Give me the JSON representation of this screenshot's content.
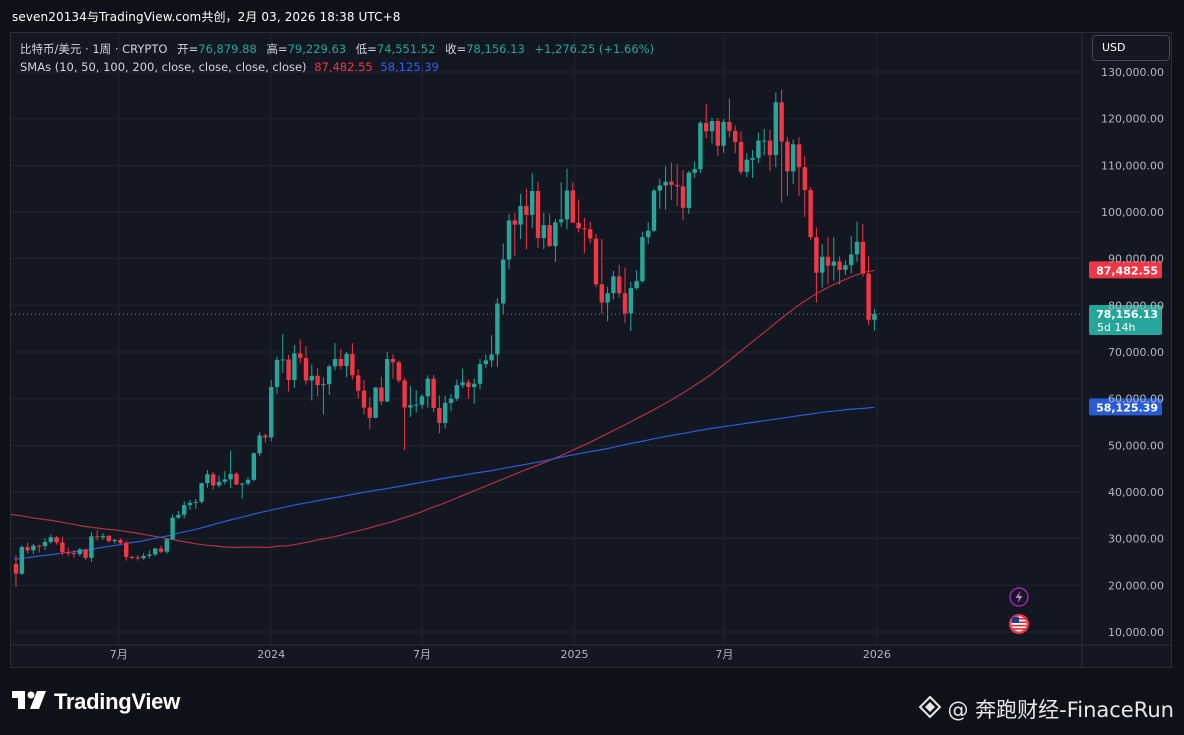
{
  "header": {
    "title": "seven20134与TradingView.com共创，2月 03, 2026 18:38 UTC+8"
  },
  "legend": {
    "symbol": "比特币/美元 · 1周 · CRYPTO",
    "open_label": "开=",
    "open": "76,879.88",
    "high_label": "高=",
    "high": "79,229.63",
    "low_label": "低=",
    "low": "74,551.52",
    "close_label": "收=",
    "close": "78,156.13",
    "change": "+1,276.25 (+1.66%)",
    "sma_label": "SMAs (10, 50, 100, 200, close, close, close, close)",
    "sma_100": "87,482.55",
    "sma_200": "58,125.39"
  },
  "currency_button": "USD",
  "price_tags": {
    "current_price": "78,156.13",
    "countdown": "5d 14h",
    "sma_100": "87,482.55",
    "sma_200": "58,125.39"
  },
  "footer": {
    "brand": "TradingView",
    "watermark": "@ 奔跑财经-FinaceRun"
  },
  "colors": {
    "up": "#26a69a",
    "down": "#f23645",
    "sma_100": "#b2323e",
    "sma_200": "#2a5bd7",
    "background": "#131722",
    "grid": "#1f2430"
  },
  "icons": [
    "lightning-icon",
    "us-flag-icon",
    "tradingview-logo-icon",
    "watermark-icon"
  ],
  "chart_data": {
    "type": "candlestick",
    "title": "比特币/美元 · 1周 · CRYPTO",
    "interval": "1周",
    "currency": "USD",
    "y_axis": {
      "ticks": [
        10000,
        20000,
        30000,
        40000,
        50000,
        60000,
        70000,
        80000,
        90000,
        100000,
        110000,
        120000,
        130000
      ],
      "tick_labels": [
        "10,000.00",
        "20,000.00",
        "30,000.00",
        "40,000.00",
        "50,000.00",
        "60,000.00",
        "70,000.00",
        "80,000.00",
        "90,000.00",
        "100,000.00",
        "110,000.00",
        "120,000.00",
        "130,000.00"
      ]
    },
    "x_axis": {
      "ticks": [
        {
          "date": "2023-07-01",
          "label": "7月"
        },
        {
          "date": "2024-01-01",
          "label": "2024"
        },
        {
          "date": "2024-07-01",
          "label": "7月"
        },
        {
          "date": "2025-01-01",
          "label": "2025"
        },
        {
          "date": "2025-07-01",
          "label": "7月"
        },
        {
          "date": "2026-01-01",
          "label": "2026"
        }
      ]
    },
    "grid": true,
    "candles": [
      {
        "o": 24600,
        "h": 26500,
        "l": 19700,
        "c": 22500
      },
      {
        "o": 22500,
        "h": 28600,
        "l": 22200,
        "c": 28200
      },
      {
        "o": 28200,
        "h": 29200,
        "l": 26800,
        "c": 27500
      },
      {
        "o": 27500,
        "h": 28900,
        "l": 26700,
        "c": 28500
      },
      {
        "o": 28500,
        "h": 28700,
        "l": 27000,
        "c": 28400
      },
      {
        "o": 28400,
        "h": 30100,
        "l": 27600,
        "c": 29300
      },
      {
        "o": 29300,
        "h": 30900,
        "l": 28900,
        "c": 30300
      },
      {
        "o": 30300,
        "h": 30600,
        "l": 28700,
        "c": 29200
      },
      {
        "o": 29200,
        "h": 30400,
        "l": 26400,
        "c": 27100
      },
      {
        "o": 27100,
        "h": 28100,
        "l": 26300,
        "c": 26900
      },
      {
        "o": 26900,
        "h": 27600,
        "l": 25900,
        "c": 26700
      },
      {
        "o": 26700,
        "h": 28000,
        "l": 26300,
        "c": 27700
      },
      {
        "o": 27700,
        "h": 27800,
        "l": 25400,
        "c": 25900
      },
      {
        "o": 25900,
        "h": 31400,
        "l": 25000,
        "c": 30500
      },
      {
        "o": 30500,
        "h": 31800,
        "l": 29600,
        "c": 30300
      },
      {
        "o": 30300,
        "h": 31200,
        "l": 29800,
        "c": 30600
      },
      {
        "o": 30600,
        "h": 30800,
        "l": 29200,
        "c": 29500
      },
      {
        "o": 29500,
        "h": 30000,
        "l": 29000,
        "c": 29700
      },
      {
        "o": 29700,
        "h": 30100,
        "l": 28800,
        "c": 29100
      },
      {
        "o": 29100,
        "h": 29600,
        "l": 25300,
        "c": 26100
      },
      {
        "o": 26100,
        "h": 26300,
        "l": 25600,
        "c": 26000
      },
      {
        "o": 26000,
        "h": 26500,
        "l": 25300,
        "c": 25800
      },
      {
        "o": 25800,
        "h": 26900,
        "l": 25500,
        "c": 26300
      },
      {
        "o": 26300,
        "h": 27500,
        "l": 25800,
        "c": 26600
      },
      {
        "o": 26600,
        "h": 28000,
        "l": 26300,
        "c": 27900
      },
      {
        "o": 27900,
        "h": 28500,
        "l": 26900,
        "c": 27200
      },
      {
        "o": 27200,
        "h": 30000,
        "l": 26800,
        "c": 29900
      },
      {
        "o": 29900,
        "h": 35200,
        "l": 29700,
        "c": 34500
      },
      {
        "o": 34500,
        "h": 35900,
        "l": 34200,
        "c": 35100
      },
      {
        "o": 35100,
        "h": 38000,
        "l": 34300,
        "c": 37200
      },
      {
        "o": 37200,
        "h": 38300,
        "l": 36200,
        "c": 37700
      },
      {
        "o": 37700,
        "h": 38500,
        "l": 36400,
        "c": 37900
      },
      {
        "o": 37900,
        "h": 42000,
        "l": 37500,
        "c": 41900
      },
      {
        "o": 41900,
        "h": 44700,
        "l": 40900,
        "c": 43800
      },
      {
        "o": 43800,
        "h": 44300,
        "l": 40500,
        "c": 41400
      },
      {
        "o": 41400,
        "h": 43500,
        "l": 41000,
        "c": 42200
      },
      {
        "o": 42200,
        "h": 44500,
        "l": 41600,
        "c": 42700
      },
      {
        "o": 42700,
        "h": 48900,
        "l": 40800,
        "c": 43900
      },
      {
        "o": 43900,
        "h": 44300,
        "l": 41500,
        "c": 41600
      },
      {
        "o": 41600,
        "h": 42000,
        "l": 38600,
        "c": 41800
      },
      {
        "o": 41800,
        "h": 43200,
        "l": 41400,
        "c": 42600
      },
      {
        "o": 42600,
        "h": 48500,
        "l": 42300,
        "c": 48300
      },
      {
        "o": 48300,
        "h": 52800,
        "l": 47700,
        "c": 52100
      },
      {
        "o": 52100,
        "h": 52500,
        "l": 50600,
        "c": 51700
      },
      {
        "o": 51700,
        "h": 64000,
        "l": 50900,
        "c": 62500
      },
      {
        "o": 62500,
        "h": 69000,
        "l": 61000,
        "c": 68300
      },
      {
        "o": 68300,
        "h": 73800,
        "l": 65500,
        "c": 68400
      },
      {
        "o": 68400,
        "h": 69400,
        "l": 61500,
        "c": 64000
      },
      {
        "o": 64000,
        "h": 71500,
        "l": 62300,
        "c": 69700
      },
      {
        "o": 69700,
        "h": 72700,
        "l": 67600,
        "c": 68700
      },
      {
        "o": 68700,
        "h": 71200,
        "l": 63000,
        "c": 63900
      },
      {
        "o": 63900,
        "h": 67300,
        "l": 59600,
        "c": 64900
      },
      {
        "o": 64900,
        "h": 66500,
        "l": 60500,
        "c": 62900
      },
      {
        "o": 62900,
        "h": 64600,
        "l": 56600,
        "c": 63100
      },
      {
        "o": 63100,
        "h": 67300,
        "l": 60800,
        "c": 66900
      },
      {
        "o": 66900,
        "h": 71900,
        "l": 66100,
        "c": 68500
      },
      {
        "o": 68500,
        "h": 70600,
        "l": 66300,
        "c": 67000
      },
      {
        "o": 67000,
        "h": 70000,
        "l": 64600,
        "c": 69600
      },
      {
        "o": 69600,
        "h": 71900,
        "l": 64100,
        "c": 65000
      },
      {
        "o": 65000,
        "h": 66300,
        "l": 60000,
        "c": 61700
      },
      {
        "o": 61700,
        "h": 64000,
        "l": 56600,
        "c": 58100
      },
      {
        "o": 58100,
        "h": 60300,
        "l": 53500,
        "c": 55900
      },
      {
        "o": 55900,
        "h": 62500,
        "l": 55800,
        "c": 62400
      },
      {
        "o": 62400,
        "h": 64700,
        "l": 58600,
        "c": 59400
      },
      {
        "o": 59400,
        "h": 70000,
        "l": 59300,
        "c": 68500
      },
      {
        "o": 68500,
        "h": 69500,
        "l": 64300,
        "c": 67800
      },
      {
        "o": 67800,
        "h": 68200,
        "l": 63400,
        "c": 63900
      },
      {
        "o": 63900,
        "h": 64500,
        "l": 49000,
        "c": 58100
      },
      {
        "o": 58100,
        "h": 62700,
        "l": 56100,
        "c": 58600
      },
      {
        "o": 58600,
        "h": 61800,
        "l": 57000,
        "c": 58700
      },
      {
        "o": 58700,
        "h": 61000,
        "l": 57800,
        "c": 60500
      },
      {
        "o": 60500,
        "h": 65000,
        "l": 58100,
        "c": 64300
      },
      {
        "o": 64300,
        "h": 65100,
        "l": 57100,
        "c": 58000
      },
      {
        "o": 58000,
        "h": 60700,
        "l": 52600,
        "c": 54800
      },
      {
        "o": 54800,
        "h": 60600,
        "l": 53600,
        "c": 59100
      },
      {
        "o": 59100,
        "h": 61000,
        "l": 57300,
        "c": 60000
      },
      {
        "o": 60000,
        "h": 64100,
        "l": 59500,
        "c": 62900
      },
      {
        "o": 62900,
        "h": 66400,
        "l": 62300,
        "c": 63500
      },
      {
        "o": 63500,
        "h": 64100,
        "l": 60000,
        "c": 62500
      },
      {
        "o": 62500,
        "h": 64300,
        "l": 58900,
        "c": 63200
      },
      {
        "o": 63200,
        "h": 68500,
        "l": 62000,
        "c": 67400
      },
      {
        "o": 67400,
        "h": 69500,
        "l": 66500,
        "c": 68200
      },
      {
        "o": 68200,
        "h": 73600,
        "l": 66800,
        "c": 69500
      },
      {
        "o": 69500,
        "h": 81500,
        "l": 66800,
        "c": 80400
      },
      {
        "o": 80400,
        "h": 93300,
        "l": 78000,
        "c": 89800
      },
      {
        "o": 89800,
        "h": 99600,
        "l": 87700,
        "c": 98200
      },
      {
        "o": 98200,
        "h": 99800,
        "l": 90600,
        "c": 97300
      },
      {
        "o": 97300,
        "h": 103900,
        "l": 94200,
        "c": 101300
      },
      {
        "o": 101300,
        "h": 105000,
        "l": 92000,
        "c": 99400
      },
      {
        "o": 99400,
        "h": 108300,
        "l": 96500,
        "c": 104500
      },
      {
        "o": 104500,
        "h": 106500,
        "l": 92400,
        "c": 94400
      },
      {
        "o": 94400,
        "h": 99800,
        "l": 92000,
        "c": 97200
      },
      {
        "o": 97200,
        "h": 99600,
        "l": 92500,
        "c": 92700
      },
      {
        "o": 92700,
        "h": 98500,
        "l": 89300,
        "c": 97800
      },
      {
        "o": 97800,
        "h": 106400,
        "l": 96800,
        "c": 98400
      },
      {
        "o": 98400,
        "h": 109300,
        "l": 96300,
        "c": 104600
      },
      {
        "o": 104600,
        "h": 106400,
        "l": 97800,
        "c": 97700
      },
      {
        "o": 97700,
        "h": 102700,
        "l": 95600,
        "c": 96500
      },
      {
        "o": 96500,
        "h": 98800,
        "l": 91200,
        "c": 96300
      },
      {
        "o": 96300,
        "h": 97900,
        "l": 93300,
        "c": 94300
      },
      {
        "o": 94300,
        "h": 95300,
        "l": 83900,
        "c": 84500
      },
      {
        "o": 84500,
        "h": 94200,
        "l": 78200,
        "c": 80600
      },
      {
        "o": 80600,
        "h": 84000,
        "l": 76600,
        "c": 82600
      },
      {
        "o": 82600,
        "h": 87400,
        "l": 81200,
        "c": 86200
      },
      {
        "o": 86200,
        "h": 88700,
        "l": 81600,
        "c": 82600
      },
      {
        "o": 82600,
        "h": 88100,
        "l": 76200,
        "c": 78300
      },
      {
        "o": 78300,
        "h": 85000,
        "l": 74500,
        "c": 83700
      },
      {
        "o": 83700,
        "h": 87500,
        "l": 83300,
        "c": 85200
      },
      {
        "o": 85200,
        "h": 95800,
        "l": 84800,
        "c": 94600
      },
      {
        "o": 94600,
        "h": 97800,
        "l": 93100,
        "c": 96000
      },
      {
        "o": 96000,
        "h": 105000,
        "l": 95700,
        "c": 104600
      },
      {
        "o": 104600,
        "h": 107100,
        "l": 100700,
        "c": 105700
      },
      {
        "o": 105700,
        "h": 109800,
        "l": 100500,
        "c": 106500
      },
      {
        "o": 106500,
        "h": 110600,
        "l": 102500,
        "c": 105800
      },
      {
        "o": 105800,
        "h": 110300,
        "l": 101200,
        "c": 105500
      },
      {
        "o": 105500,
        "h": 108900,
        "l": 98200,
        "c": 100900
      },
      {
        "o": 100900,
        "h": 108800,
        "l": 99600,
        "c": 108400
      },
      {
        "o": 108400,
        "h": 110800,
        "l": 107300,
        "c": 109200
      },
      {
        "o": 109200,
        "h": 119500,
        "l": 108400,
        "c": 119100
      },
      {
        "o": 119100,
        "h": 123100,
        "l": 115700,
        "c": 117300
      },
      {
        "o": 117300,
        "h": 120200,
        "l": 114700,
        "c": 119500
      },
      {
        "o": 119500,
        "h": 120100,
        "l": 112000,
        "c": 114200
      },
      {
        "o": 114200,
        "h": 119900,
        "l": 112700,
        "c": 119300
      },
      {
        "o": 119300,
        "h": 124400,
        "l": 116000,
        "c": 117400
      },
      {
        "o": 117400,
        "h": 118500,
        "l": 112600,
        "c": 115000
      },
      {
        "o": 115000,
        "h": 117300,
        "l": 108000,
        "c": 108600
      },
      {
        "o": 108600,
        "h": 112600,
        "l": 107500,
        "c": 111200
      },
      {
        "o": 111200,
        "h": 113300,
        "l": 107300,
        "c": 111600
      },
      {
        "o": 111600,
        "h": 117000,
        "l": 110500,
        "c": 115300
      },
      {
        "o": 115300,
        "h": 117800,
        "l": 112100,
        "c": 115300
      },
      {
        "o": 115300,
        "h": 117600,
        "l": 108700,
        "c": 112200
      },
      {
        "o": 112200,
        "h": 125600,
        "l": 109600,
        "c": 123500
      },
      {
        "o": 123500,
        "h": 126200,
        "l": 102000,
        "c": 115100
      },
      {
        "o": 115100,
        "h": 116100,
        "l": 103500,
        "c": 108700
      },
      {
        "o": 108700,
        "h": 115500,
        "l": 106000,
        "c": 114500
      },
      {
        "o": 114500,
        "h": 116000,
        "l": 103500,
        "c": 109600
      },
      {
        "o": 109600,
        "h": 112000,
        "l": 98900,
        "c": 104700
      },
      {
        "o": 104700,
        "h": 105300,
        "l": 94000,
        "c": 94600
      },
      {
        "o": 94600,
        "h": 96700,
        "l": 80600,
        "c": 87000
      },
      {
        "o": 87000,
        "h": 93100,
        "l": 83800,
        "c": 90400
      },
      {
        "o": 90400,
        "h": 94600,
        "l": 84500,
        "c": 88500
      },
      {
        "o": 88500,
        "h": 94600,
        "l": 85300,
        "c": 89400
      },
      {
        "o": 89400,
        "h": 90500,
        "l": 84400,
        "c": 87600
      },
      {
        "o": 87600,
        "h": 89600,
        "l": 86500,
        "c": 88600
      },
      {
        "o": 88600,
        "h": 94800,
        "l": 86800,
        "c": 90900
      },
      {
        "o": 90900,
        "h": 97900,
        "l": 89300,
        "c": 93600
      },
      {
        "o": 93600,
        "h": 97400,
        "l": 86100,
        "c": 86800
      },
      {
        "o": 86800,
        "h": 90600,
        "l": 75700,
        "c": 76900
      },
      {
        "o": 76900,
        "h": 79229.63,
        "l": 74551.52,
        "c": 78156.13
      }
    ],
    "series": [
      {
        "name": "SMA 100",
        "last_value": 87482.55,
        "values": [
          35200,
          34900,
          34500,
          34200,
          33900,
          33500,
          33100,
          32700,
          32400,
          32100,
          31900,
          31600,
          31300,
          30900,
          30500,
          30100,
          29700,
          29300,
          28900,
          28600,
          28400,
          28200,
          28100,
          28200,
          28200,
          28100,
          28400,
          28500,
          28900,
          29300,
          29800,
          30200,
          30700,
          31300,
          31800,
          32400,
          33000,
          33600,
          34300,
          35000,
          35800,
          36700,
          37500,
          38400,
          39300,
          40200,
          41100,
          42000,
          42900,
          43800,
          44700,
          45500,
          46400,
          47300,
          48300,
          49300,
          50300,
          51400,
          52500,
          53600,
          54700,
          55900,
          57000,
          58200,
          59400,
          60700,
          62100,
          63500,
          65000,
          66700,
          68400,
          70200,
          72000,
          73700,
          75500,
          77300,
          79000,
          80600,
          82000,
          83300,
          84400,
          85400,
          86300,
          87100,
          87482.55
        ]
      },
      {
        "name": "SMA 200",
        "last_value": 58125.39,
        "values": [
          25600,
          25900,
          26300,
          26600,
          27000,
          27300,
          27700,
          28200,
          28600,
          29100,
          29500,
          30100,
          30600,
          31300,
          31900,
          32600,
          33400,
          34100,
          34800,
          35500,
          36100,
          36700,
          37300,
          37800,
          38300,
          38800,
          39300,
          39800,
          40300,
          40700,
          41200,
          41700,
          42200,
          42700,
          43200,
          43600,
          44100,
          44500,
          45000,
          45500,
          46000,
          46500,
          47100,
          47700,
          48200,
          48700,
          49200,
          49800,
          50400,
          50900,
          51500,
          52000,
          52500,
          53000,
          53500,
          53900,
          54300,
          54700,
          55100,
          55500,
          55900,
          56300,
          56700,
          57100,
          57400,
          57700,
          57900,
          58125.39
        ]
      }
    ]
  }
}
